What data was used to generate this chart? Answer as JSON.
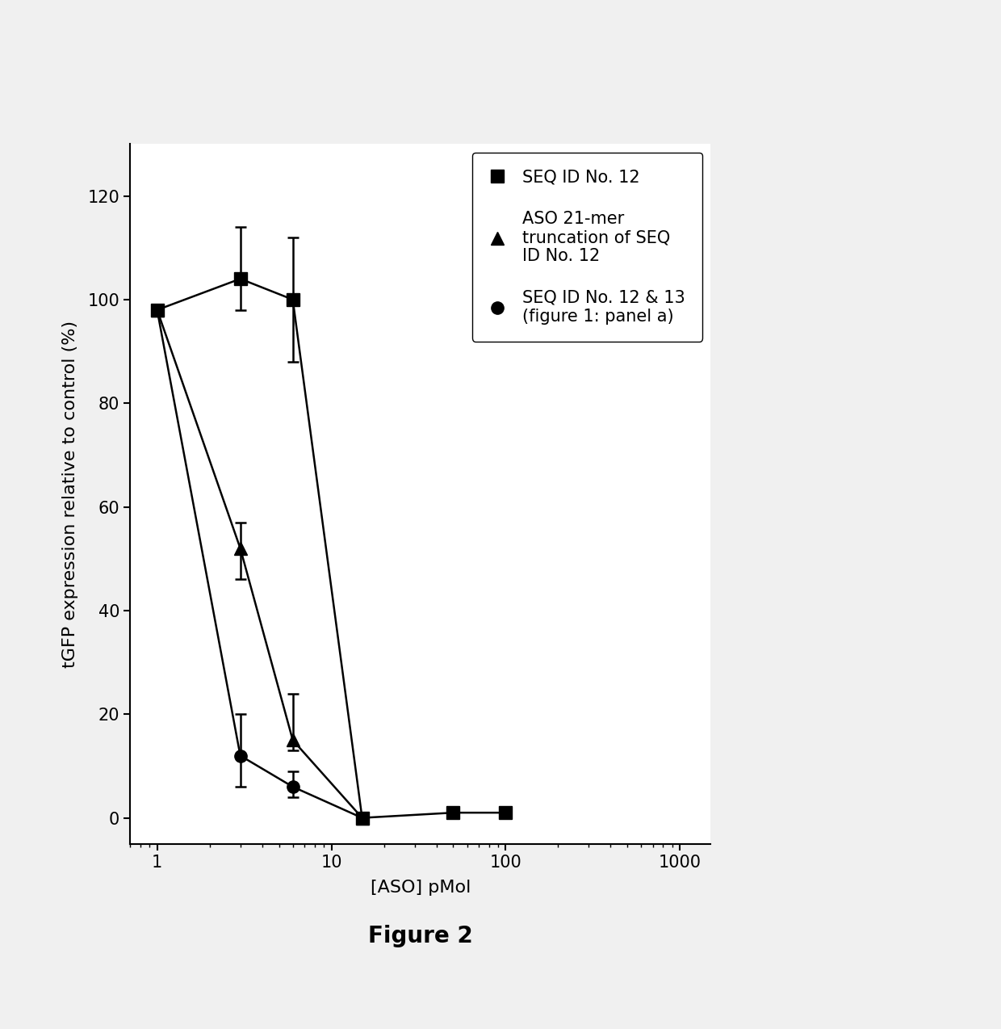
{
  "xlabel": "[ASO] pMol",
  "ylabel": "tGFP expression relative to control (%)",
  "xlim": [
    0.7,
    1500
  ],
  "ylim": [
    -5,
    130
  ],
  "yticks": [
    0,
    20,
    40,
    60,
    80,
    100,
    120
  ],
  "background_color": "#f0f0f0",
  "plot_bg_color": "#ffffff",
  "series": [
    {
      "label": "SEQ ID No. 12",
      "marker": "s",
      "color": "#000000",
      "x": [
        1,
        3,
        6,
        15,
        50,
        100
      ],
      "y": [
        98,
        104,
        100,
        0,
        1,
        1
      ],
      "yerr_low": [
        0,
        6,
        12,
        0,
        0,
        0
      ],
      "yerr_high": [
        0,
        10,
        12,
        0,
        0,
        0
      ]
    },
    {
      "label": "ASO 21-mer\ntruncation of SEQ\nID No. 12",
      "marker": "^",
      "color": "#000000",
      "x": [
        1,
        3,
        6,
        15
      ],
      "y": [
        98,
        52,
        15,
        0
      ],
      "yerr_low": [
        0,
        6,
        2,
        0
      ],
      "yerr_high": [
        0,
        5,
        9,
        0
      ]
    },
    {
      "label": "SEQ ID No. 12 & 13\n(figure 1: panel a)",
      "marker": "o",
      "color": "#000000",
      "x": [
        1,
        3,
        6,
        15
      ],
      "y": [
        98,
        12,
        6,
        0
      ],
      "yerr_low": [
        0,
        6,
        2,
        0
      ],
      "yerr_high": [
        0,
        8,
        3,
        0
      ]
    }
  ],
  "legend_labels": [
    "SEQ ID No. 12",
    "ASO 21-mer\ntruncation of SEQ\nID No. 12",
    "SEQ ID No. 12 & 13\n(figure 1: panel a)"
  ],
  "legend_markers": [
    "s",
    "^",
    "o"
  ],
  "marker_size": 11,
  "linewidth": 1.8,
  "figure_label": "Figure 2",
  "figure_label_fontsize": 20,
  "figure_label_fontweight": "bold",
  "axis_fontsize": 16,
  "tick_fontsize": 15,
  "legend_fontsize": 15
}
